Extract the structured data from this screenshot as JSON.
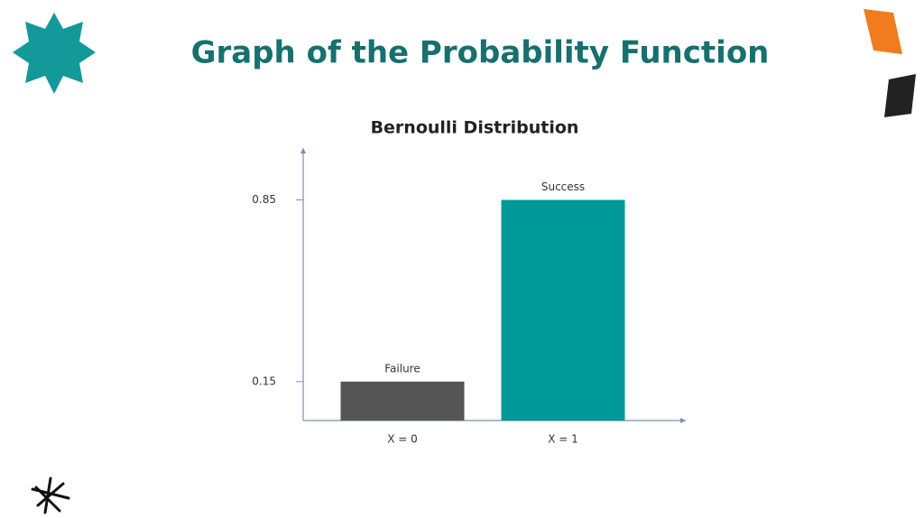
{
  "slide_title": "Graph of the Probability Function",
  "chart_data": {
    "type": "bar",
    "title": "Bernoulli Distribution",
    "categories": [
      "X = 0",
      "X = 1"
    ],
    "values": [
      0.15,
      0.85
    ],
    "colors": [
      "#555555",
      "#009999"
    ],
    "bar_labels": [
      "Failure",
      "Success"
    ],
    "ylim": [
      0,
      1.05
    ],
    "yticks": [
      0.15,
      0.85
    ]
  }
}
